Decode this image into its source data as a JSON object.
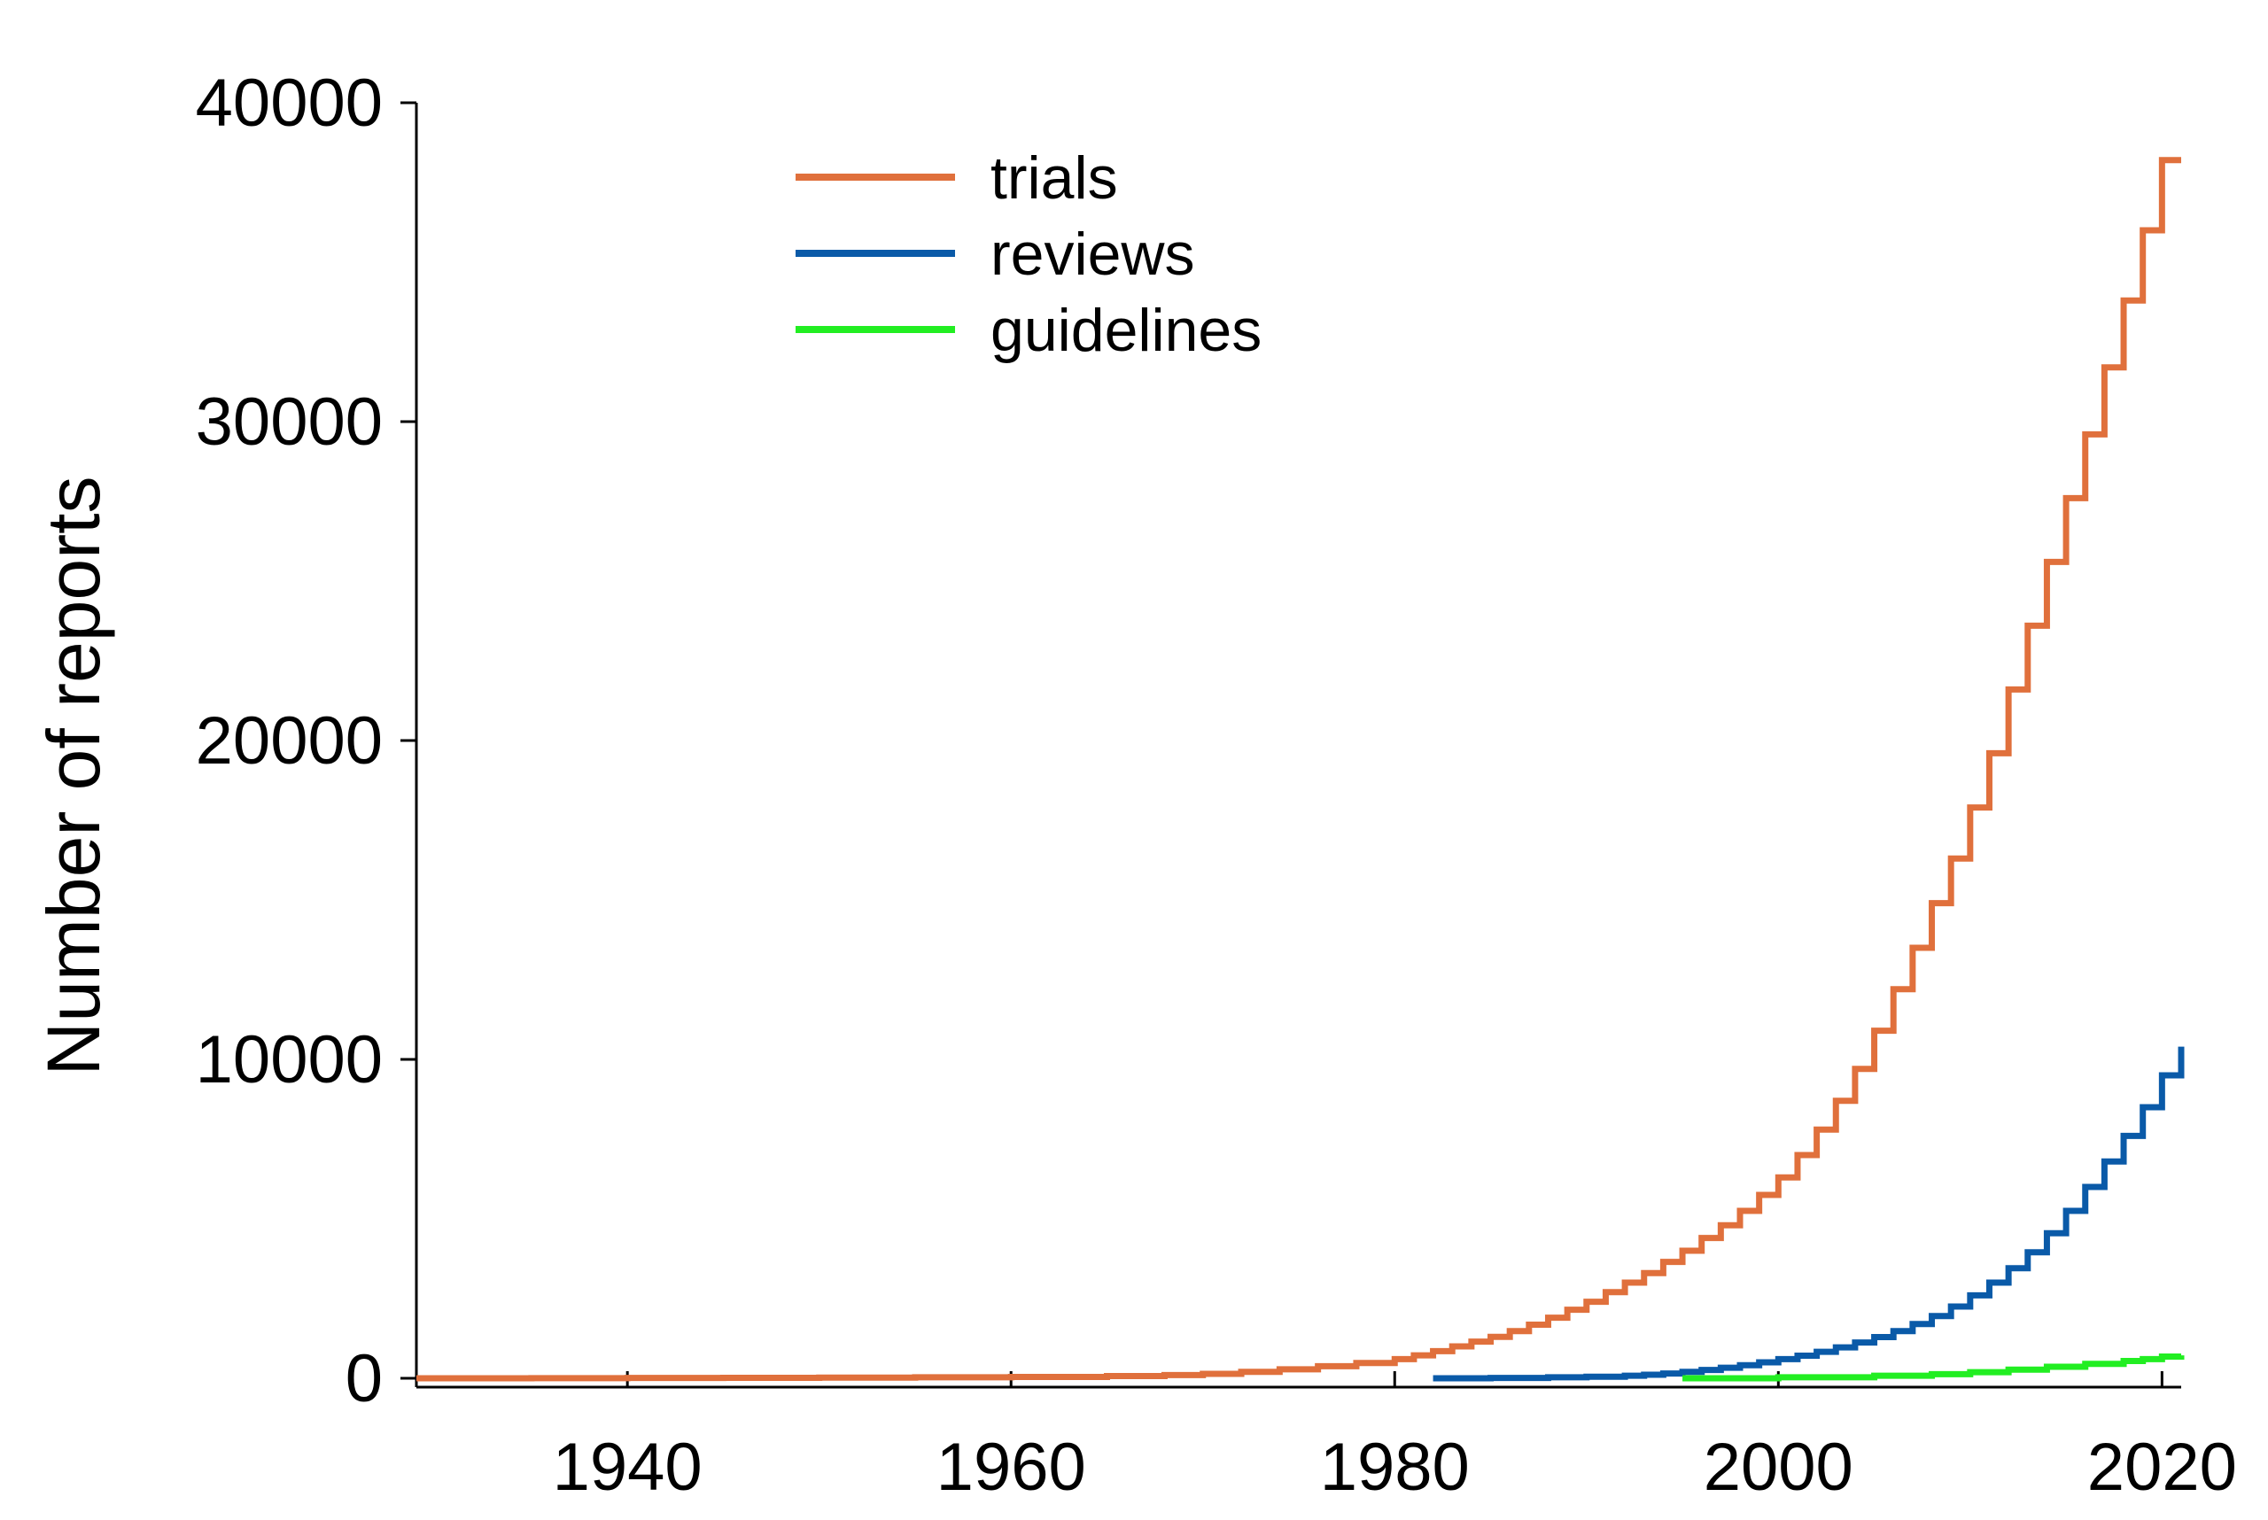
{
  "chart_data": {
    "type": "line",
    "step": true,
    "title": "",
    "xlabel": "",
    "ylabel": "Number of reports",
    "xlim": [
      1929,
      2021
    ],
    "ylim": [
      0,
      40000
    ],
    "xticks": [
      1940,
      1960,
      1980,
      2000,
      2020
    ],
    "yticks": [
      0,
      10000,
      20000,
      30000,
      40000
    ],
    "grid": false,
    "legend_position": "top-left",
    "colors": {
      "trials": "#E0703C",
      "reviews": "#0A5AA8",
      "guidelines": "#22EE22"
    },
    "series": [
      {
        "name": "trials",
        "x": [
          1929,
          1935,
          1940,
          1945,
          1950,
          1955,
          1960,
          1965,
          1968,
          1970,
          1972,
          1974,
          1976,
          1978,
          1980,
          1981,
          1982,
          1983,
          1984,
          1985,
          1986,
          1987,
          1988,
          1989,
          1990,
          1991,
          1992,
          1993,
          1994,
          1995,
          1996,
          1997,
          1998,
          1999,
          2000,
          2001,
          2002,
          2003,
          2004,
          2005,
          2006,
          2007,
          2008,
          2009,
          2010,
          2011,
          2012,
          2013,
          2014,
          2015,
          2016,
          2017,
          2018,
          2019,
          2020,
          2021
        ],
        "values": [
          0,
          5,
          10,
          15,
          20,
          30,
          40,
          70,
          100,
          140,
          200,
          280,
          380,
          480,
          600,
          720,
          850,
          1000,
          1150,
          1300,
          1480,
          1680,
          1900,
          2150,
          2400,
          2700,
          3000,
          3300,
          3650,
          4000,
          4400,
          4800,
          5250,
          5750,
          6300,
          7000,
          7800,
          8700,
          9700,
          10900,
          12200,
          13500,
          14900,
          16300,
          17900,
          19600,
          21600,
          23600,
          25600,
          27600,
          29600,
          31700,
          33800,
          36000,
          38200,
          38200
        ]
      },
      {
        "name": "reviews",
        "x": [
          1982,
          1985,
          1988,
          1990,
          1992,
          1993,
          1994,
          1995,
          1996,
          1997,
          1998,
          1999,
          2000,
          2001,
          2002,
          2003,
          2004,
          2005,
          2006,
          2007,
          2008,
          2009,
          2010,
          2011,
          2012,
          2013,
          2014,
          2015,
          2016,
          2017,
          2018,
          2019,
          2020,
          2021
        ],
        "values": [
          0,
          10,
          30,
          50,
          80,
          110,
          150,
          200,
          260,
          330,
          410,
          500,
          600,
          710,
          830,
          970,
          1120,
          1290,
          1480,
          1700,
          1950,
          2250,
          2600,
          3000,
          3450,
          3950,
          4550,
          5250,
          6000,
          6800,
          7600,
          8500,
          9500,
          10400
        ]
      },
      {
        "name": "guidelines",
        "x": [
          1995,
          2000,
          2005,
          2008,
          2010,
          2012,
          2014,
          2016,
          2018,
          2019,
          2020,
          2021
        ],
        "values": [
          0,
          30,
          80,
          130,
          190,
          270,
          360,
          450,
          540,
          600,
          680,
          720
        ]
      }
    ]
  }
}
